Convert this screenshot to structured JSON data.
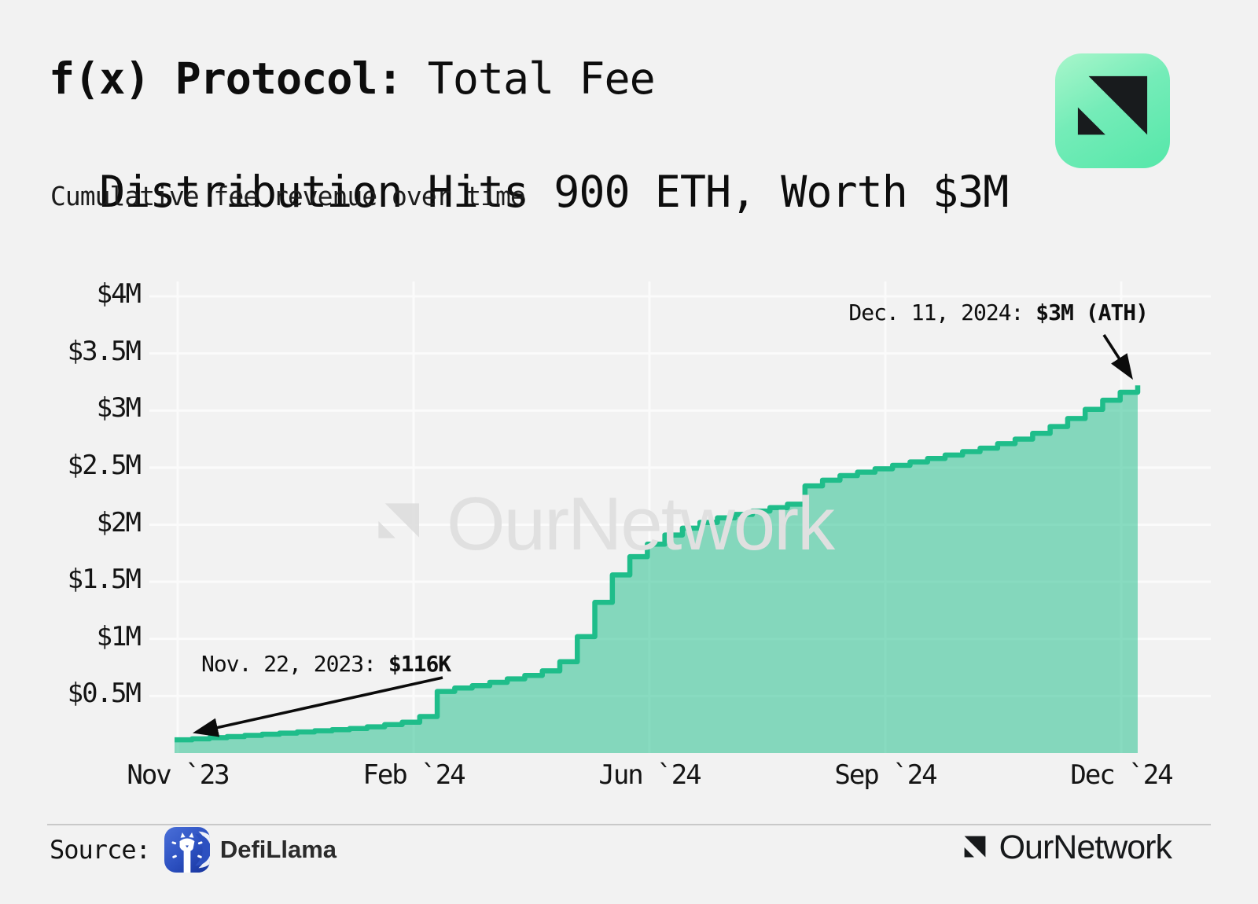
{
  "header": {
    "title_bold": "f(x) Protocol:",
    "title_line1_rest": " Total Fee",
    "title_line2": "Distribution Hits 900 ETH, Worth $3M",
    "subtitle": "Cumulative fee revenue over time",
    "logo_icon": "ournetwork-logo"
  },
  "chart_data": {
    "type": "area",
    "title": "Cumulative fee revenue over time",
    "x_range": [
      "2023-11-22",
      "2024-12-11"
    ],
    "x_tick_labels": [
      "Nov `23",
      "Feb `24",
      "Jun `24",
      "Sep `24",
      "Dec `24"
    ],
    "y_tick_labels": [
      "$4M",
      "$3.5M",
      "$3M",
      "$2.5M",
      "$2M",
      "$1.5M",
      "$1M",
      "$0.5M"
    ],
    "ylim_usd_millions": [
      0,
      4
    ],
    "grid": true,
    "legend": "none",
    "line_color": "#1fbd8a",
    "fill_color": "rgba(30,190,138,0.52)",
    "series": [
      {
        "name": "Cumulative fee revenue",
        "unit": "USD_millions",
        "cadence": "weekly",
        "values": [
          0.116,
          0.125,
          0.135,
          0.145,
          0.155,
          0.165,
          0.175,
          0.185,
          0.195,
          0.205,
          0.215,
          0.23,
          0.25,
          0.27,
          0.32,
          0.54,
          0.57,
          0.59,
          0.62,
          0.65,
          0.68,
          0.72,
          0.8,
          1.02,
          1.32,
          1.56,
          1.72,
          1.83,
          1.91,
          1.97,
          2.02,
          2.06,
          2.09,
          2.12,
          2.15,
          2.18,
          2.34,
          2.39,
          2.43,
          2.46,
          2.49,
          2.52,
          2.55,
          2.58,
          2.61,
          2.64,
          2.67,
          2.71,
          2.75,
          2.8,
          2.86,
          2.93,
          3.01,
          3.09,
          3.16,
          3.22
        ]
      }
    ],
    "annotations": [
      {
        "label_regular": "Nov. 22, 2023: ",
        "label_bold": "$116K",
        "point": "first"
      },
      {
        "label_regular": "Dec. 11, 2024: ",
        "label_bold": "$3M (ATH)",
        "point": "last"
      }
    ]
  },
  "watermark": {
    "text": "OurNetwork"
  },
  "footer": {
    "source_label": "Source:",
    "source_name": "DefiLlama",
    "source_icon": "defillama-llama-logo",
    "brand_name": "OurNetwork",
    "brand_icon": "ournetwork-logo"
  }
}
